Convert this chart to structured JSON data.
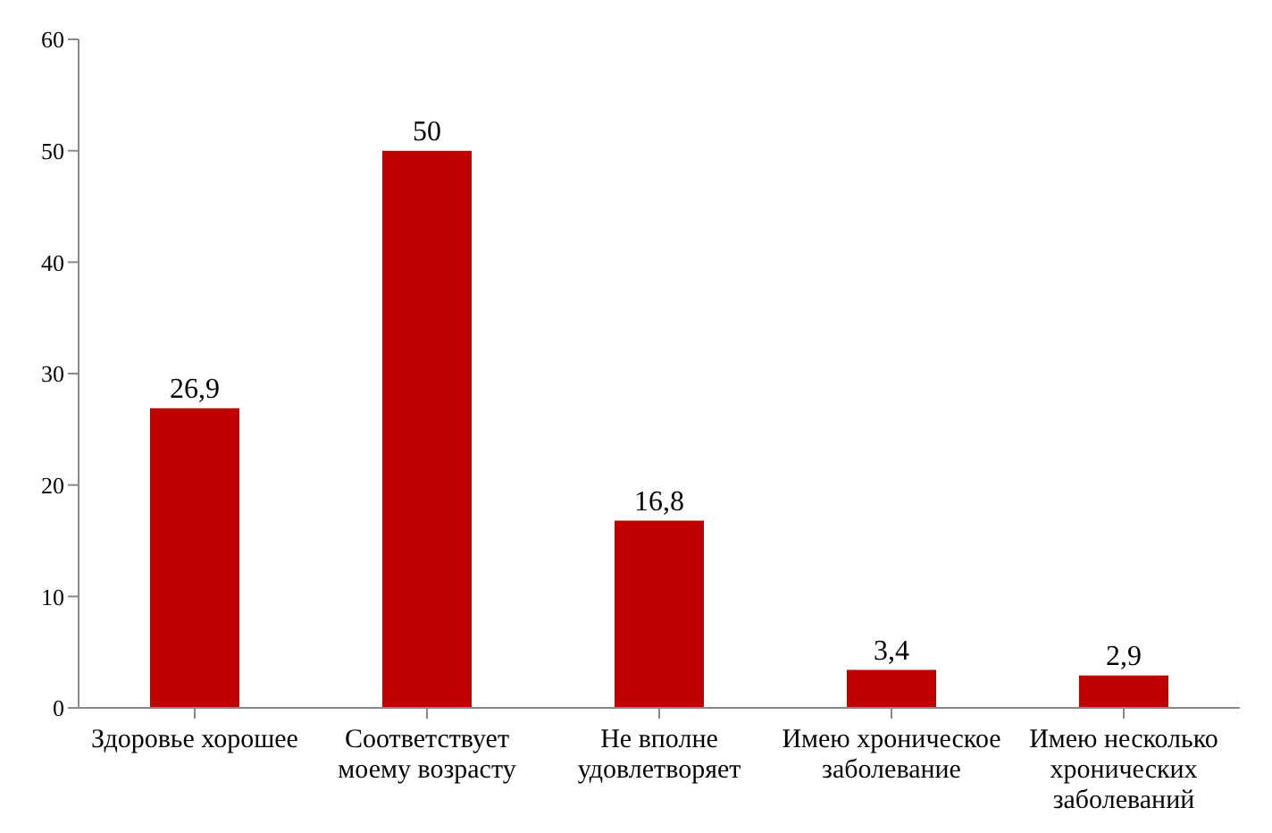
{
  "chart_data": {
    "type": "bar",
    "categories": [
      "Здоровье хорошее",
      "Соответствует моему возрасту",
      "Не вполне удовлетворяет",
      "Имею хроническое заболевание",
      "Имею несколько хронических заболеваний"
    ],
    "values": [
      26.9,
      50,
      16.8,
      3.4,
      2.9
    ],
    "value_labels": [
      "26,9",
      "50",
      "16,8",
      "3,4",
      "2,9"
    ],
    "color": "#c00000",
    "ylim": [
      0,
      60
    ],
    "yticks": [
      0,
      10,
      20,
      30,
      40,
      50,
      60
    ],
    "grid": false
  }
}
